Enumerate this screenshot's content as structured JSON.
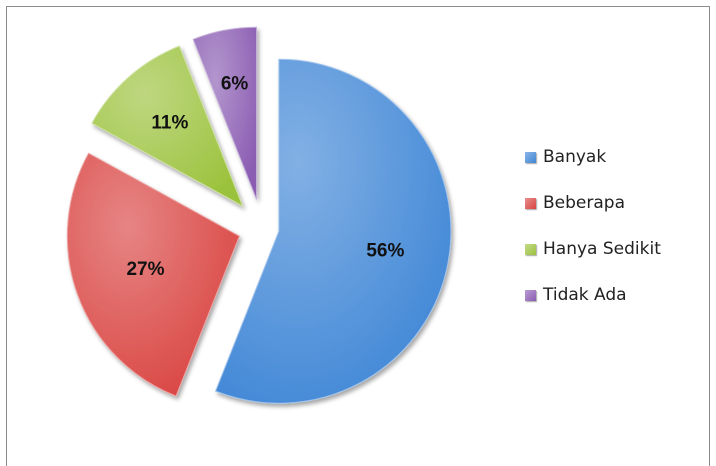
{
  "chart_data": {
    "type": "pie",
    "title": "",
    "exploded": true,
    "slices": [
      {
        "name": "Banyak",
        "value": 56,
        "label": "56%",
        "color": "#3f86d6"
      },
      {
        "name": "Beberapa",
        "value": 27,
        "label": "27%",
        "color": "#d94441"
      },
      {
        "name": "Hanya Sedikit",
        "value": 11,
        "label": "11%",
        "color": "#9bc23c"
      },
      {
        "name": "Tidak Ada",
        "value": 6,
        "label": "6%",
        "color": "#8a5cb2"
      }
    ],
    "legend": {
      "position": "right"
    }
  }
}
